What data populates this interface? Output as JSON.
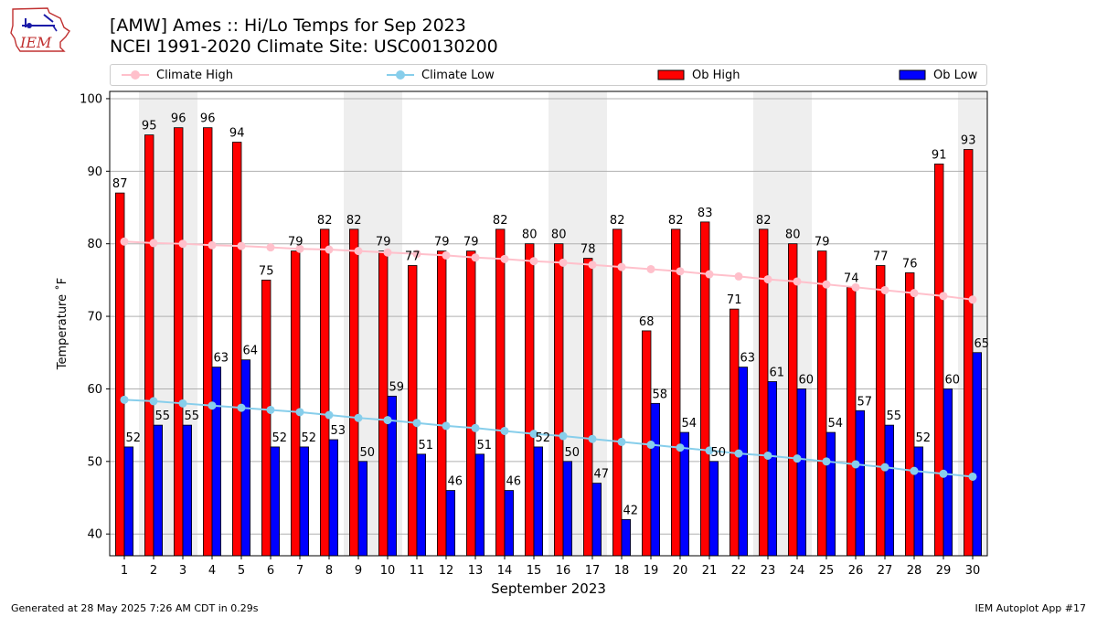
{
  "header": {
    "logo_text": "IEM",
    "title_line1": "[AMW] Ames :: Hi/Lo Temps for Sep 2023",
    "title_line2": "NCEI 1991-2020 Climate Site: USC00130200"
  },
  "footer": {
    "left": "Generated at 28 May 2025 7:26 AM CDT in 0.29s",
    "right": "IEM Autoplot App #17"
  },
  "colors": {
    "climate_high": "#ffc0cb",
    "climate_low": "#87ceeb",
    "ob_high": "#ff0000",
    "ob_low": "#0000ff",
    "weekend_band": "#eeeeee",
    "grid": "#b0b0b0"
  },
  "chart_data": {
    "type": "bar",
    "xlabel": "September 2023",
    "ylabel": "Temperature ˚F",
    "ylim": [
      37,
      101
    ],
    "yticks": [
      40,
      50,
      60,
      70,
      80,
      90,
      100
    ],
    "grid": true,
    "legend_position": "top",
    "categories": [
      "1",
      "2",
      "3",
      "4",
      "5",
      "6",
      "7",
      "8",
      "9",
      "10",
      "11",
      "12",
      "13",
      "14",
      "15",
      "16",
      "17",
      "18",
      "19",
      "20",
      "21",
      "22",
      "23",
      "24",
      "25",
      "26",
      "27",
      "28",
      "29",
      "30"
    ],
    "shaded_days": [
      2,
      3,
      9,
      10,
      16,
      17,
      23,
      24,
      30
    ],
    "series": [
      {
        "name": "Ob High",
        "kind": "bar",
        "values": [
          87,
          95,
          96,
          96,
          94,
          75,
          79,
          82,
          82,
          79,
          77,
          79,
          79,
          82,
          80,
          80,
          78,
          82,
          68,
          82,
          83,
          71,
          82,
          80,
          79,
          74,
          77,
          76,
          91,
          93
        ]
      },
      {
        "name": "Ob Low",
        "kind": "bar",
        "values": [
          52,
          55,
          55,
          63,
          64,
          52,
          52,
          53,
          50,
          59,
          51,
          46,
          51,
          46,
          52,
          50,
          47,
          42,
          58,
          54,
          50,
          63,
          61,
          60,
          54,
          57,
          55,
          52,
          60,
          65
        ]
      },
      {
        "name": "Climate High",
        "kind": "line",
        "values": [
          80.3,
          80.1,
          80.0,
          79.8,
          79.7,
          79.5,
          79.3,
          79.2,
          79.0,
          78.8,
          78.6,
          78.4,
          78.1,
          77.9,
          77.6,
          77.4,
          77.1,
          76.8,
          76.5,
          76.2,
          75.8,
          75.5,
          75.1,
          74.8,
          74.4,
          74.0,
          73.6,
          73.2,
          72.8,
          72.3
        ]
      },
      {
        "name": "Climate Low",
        "kind": "line",
        "values": [
          58.5,
          58.3,
          58.0,
          57.7,
          57.4,
          57.1,
          56.8,
          56.4,
          56.0,
          55.7,
          55.3,
          54.9,
          54.6,
          54.2,
          53.8,
          53.5,
          53.1,
          52.7,
          52.3,
          51.9,
          51.5,
          51.1,
          50.8,
          50.4,
          50.0,
          49.6,
          49.2,
          48.7,
          48.3,
          47.9
        ]
      }
    ]
  }
}
